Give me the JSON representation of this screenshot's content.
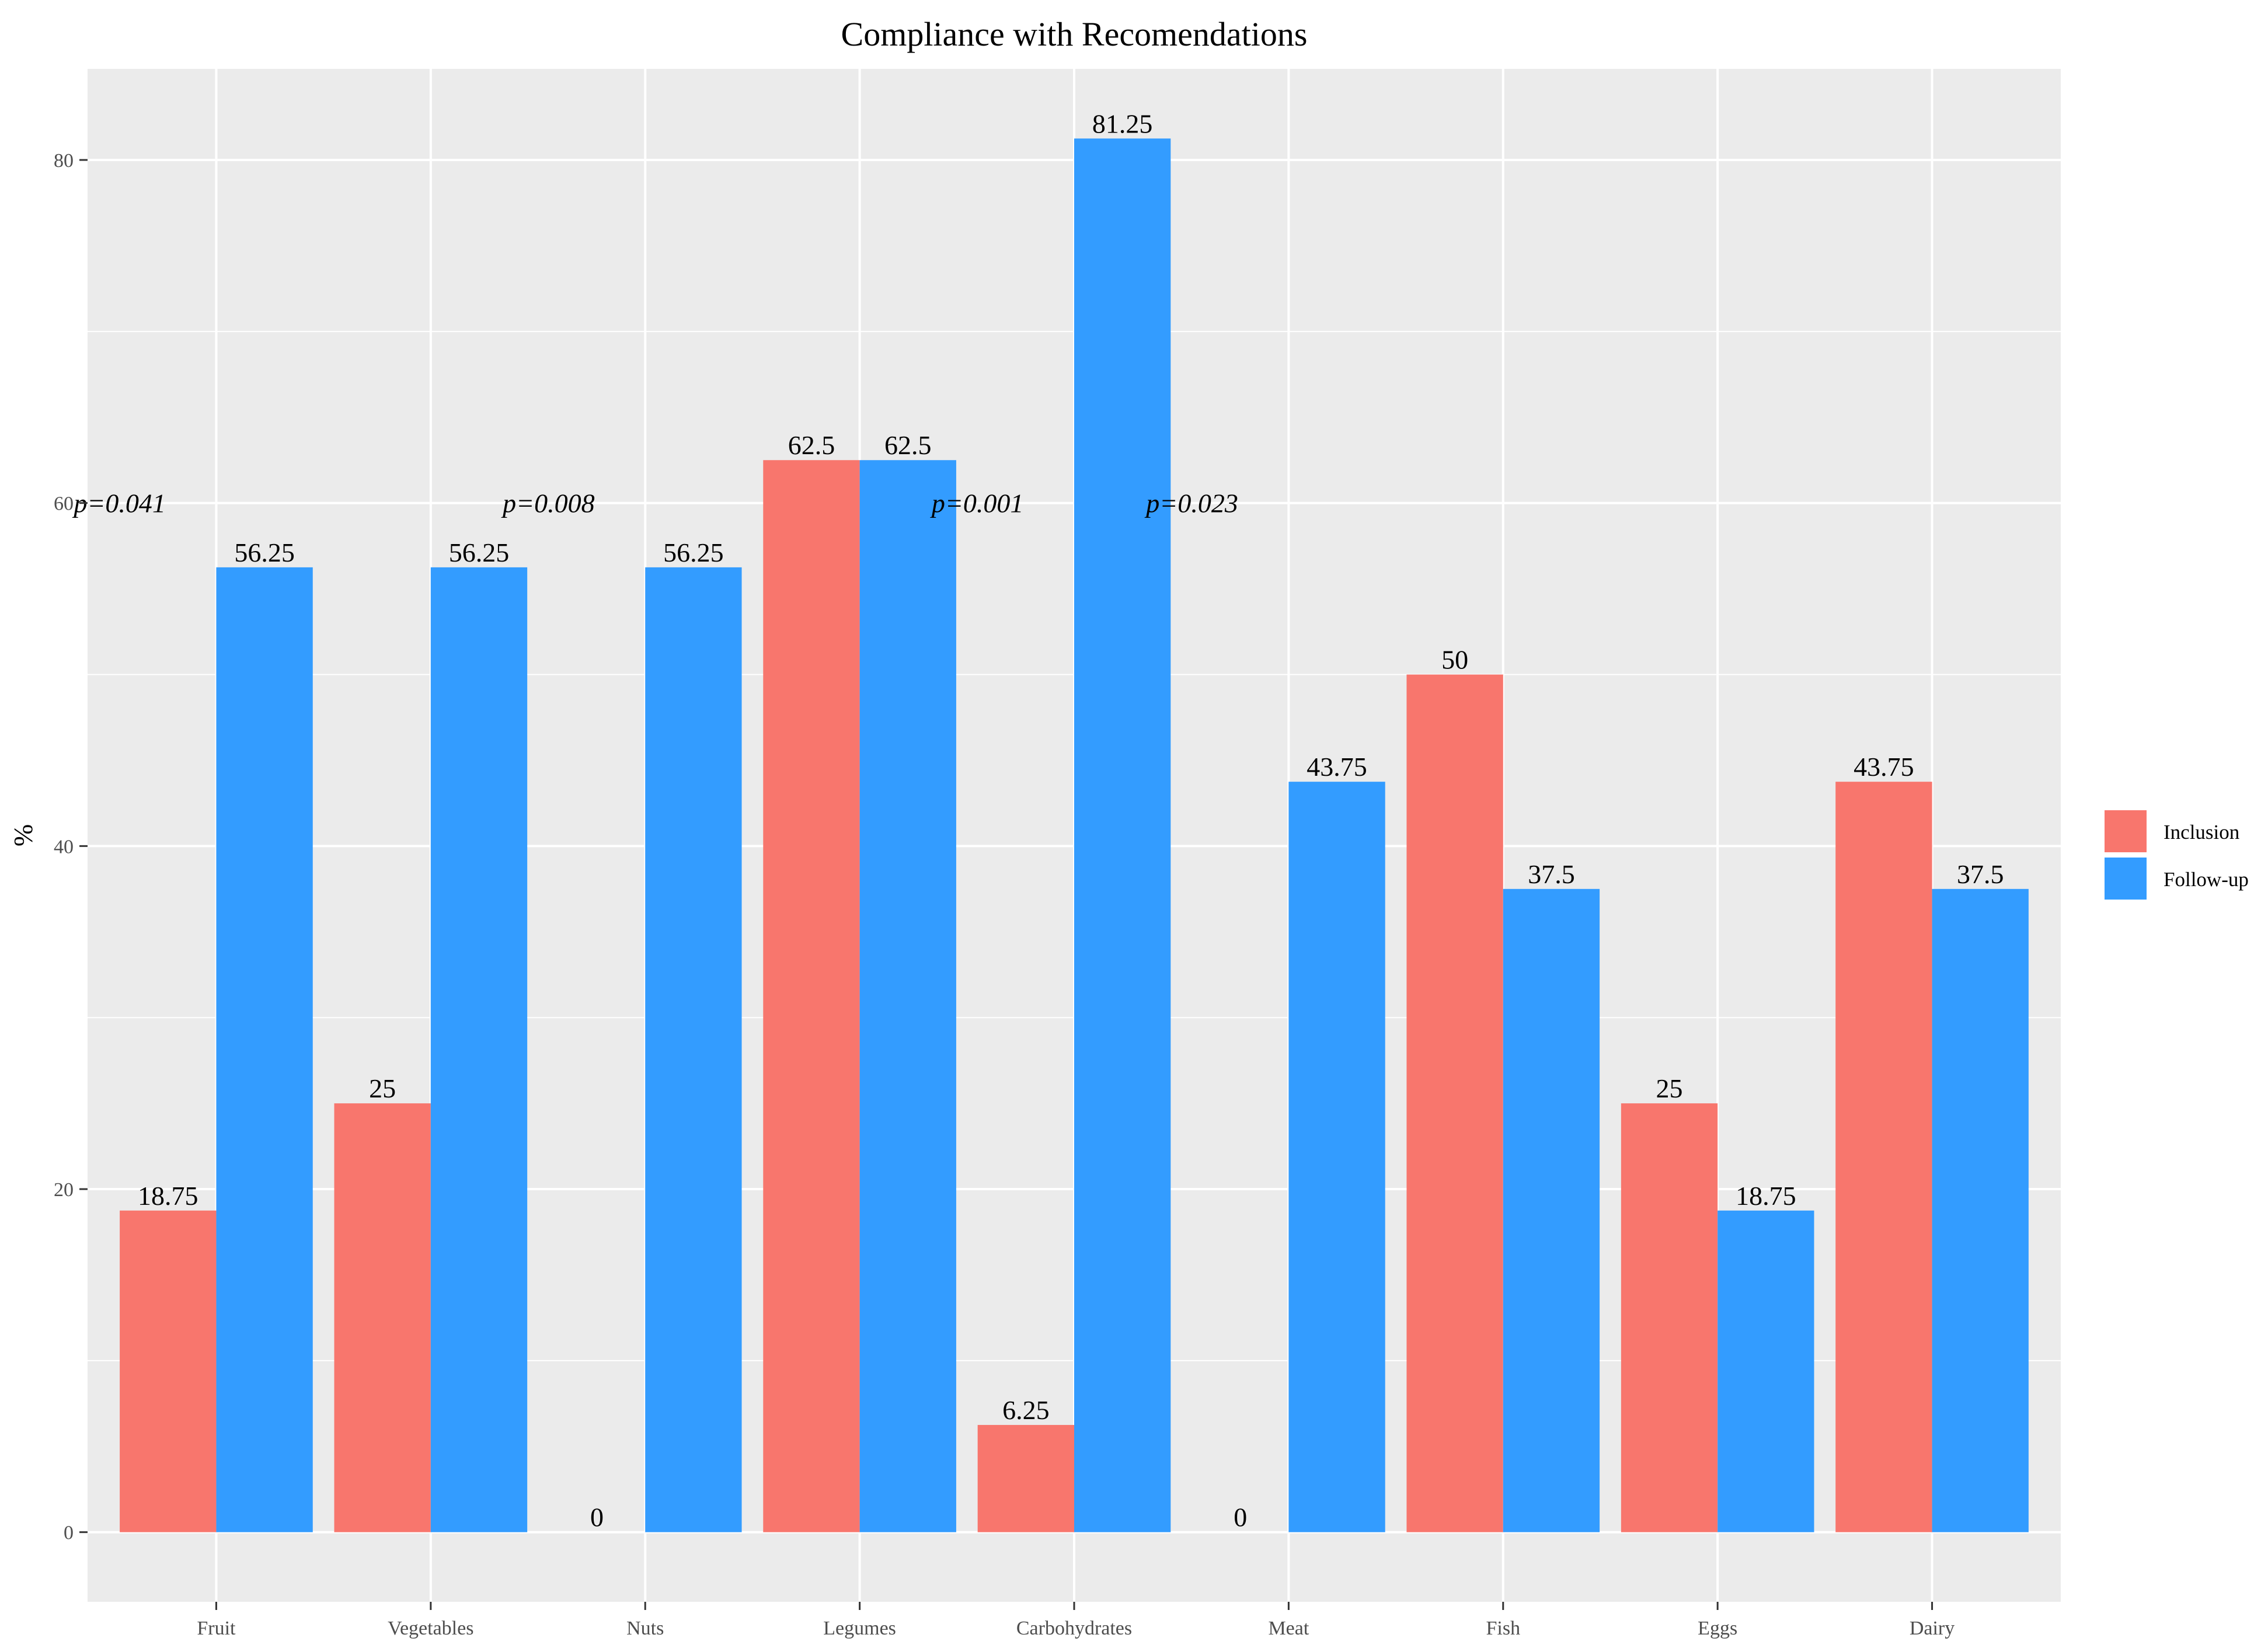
{
  "chart_data": {
    "type": "bar",
    "title": "Compliance with Recomendations",
    "xlabel": "",
    "ylabel": "%",
    "categories": [
      "Fruit",
      "Vegetables",
      "Nuts",
      "Legumes",
      "Carbohydrates",
      "Meat",
      "Fish",
      "Eggs",
      "Dairy"
    ],
    "series": [
      {
        "name": "Inclusion",
        "color": "#F8766D",
        "values": [
          18.75,
          25,
          0,
          62.5,
          6.25,
          0,
          50,
          25,
          43.75
        ],
        "labels": [
          "18.75",
          "25",
          "0",
          "62.5",
          "6.25",
          "0",
          "50",
          "25",
          "43.75"
        ]
      },
      {
        "name": "Follow-up",
        "color": "#339CFF",
        "values": [
          56.25,
          56.25,
          56.25,
          62.5,
          81.25,
          43.75,
          37.5,
          18.75,
          37.5
        ],
        "labels": [
          "56.25",
          "56.25",
          "56.25",
          "62.5",
          "81.25",
          "43.75",
          "37.5",
          "18.75",
          "37.5"
        ]
      }
    ],
    "annotations": [
      {
        "category": "Fruit",
        "text": "p=0.041",
        "y": 60
      },
      {
        "category": "Nuts",
        "text": "p=0.008",
        "y": 60
      },
      {
        "category": "Carbohydrates",
        "text": "p=0.001",
        "y": 60
      },
      {
        "category": "Meat",
        "text": "p=0.023",
        "y": 60
      }
    ],
    "ylim": [
      -4.06,
      85.31
    ],
    "yticks": [
      0,
      20,
      40,
      60,
      80
    ],
    "yticks_labels": [
      "0",
      "20",
      "40",
      "60",
      "80"
    ],
    "grid": true,
    "legend": "right",
    "panel_background": "#EBEBEB"
  }
}
